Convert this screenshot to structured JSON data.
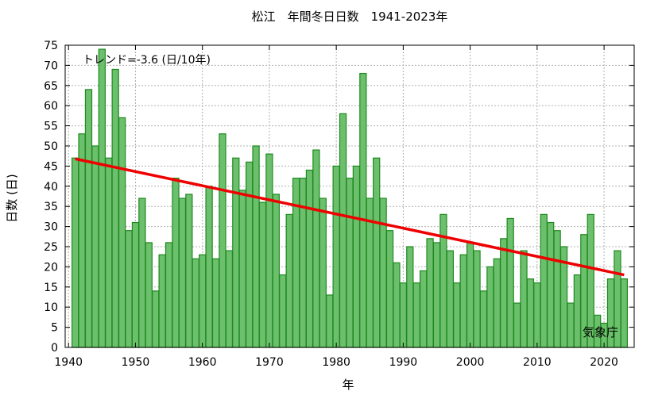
{
  "chart_data": {
    "type": "bar",
    "title": "松江　年間冬日日数　1941-2023年",
    "xlabel": "年",
    "ylabel": "日数 (日)",
    "trend_label": "トレンド=-3.6 (日/10年)",
    "source_label": "気象庁",
    "xlim": [
      1939.5,
      2024.5
    ],
    "ylim": [
      0,
      75
    ],
    "xticks": [
      1940,
      1950,
      1960,
      1970,
      1980,
      1990,
      2000,
      2010,
      2020
    ],
    "yticks": [
      0,
      5,
      10,
      15,
      20,
      25,
      30,
      35,
      40,
      45,
      50,
      55,
      60,
      65,
      70,
      75
    ],
    "grid": true,
    "bar_color": "#6cbf6c",
    "bar_edge_color": "#1f8a1f",
    "trend_color": "#ee0000",
    "x": [
      1941,
      1942,
      1943,
      1944,
      1945,
      1946,
      1947,
      1948,
      1949,
      1950,
      1951,
      1952,
      1953,
      1954,
      1955,
      1956,
      1957,
      1958,
      1959,
      1960,
      1961,
      1962,
      1963,
      1964,
      1965,
      1966,
      1967,
      1968,
      1969,
      1970,
      1971,
      1972,
      1973,
      1974,
      1975,
      1976,
      1977,
      1978,
      1979,
      1980,
      1981,
      1982,
      1983,
      1984,
      1985,
      1986,
      1987,
      1988,
      1989,
      1990,
      1991,
      1992,
      1993,
      1994,
      1995,
      1996,
      1997,
      1998,
      1999,
      2000,
      2001,
      2002,
      2003,
      2004,
      2005,
      2006,
      2007,
      2008,
      2009,
      2010,
      2011,
      2012,
      2013,
      2014,
      2015,
      2016,
      2017,
      2018,
      2019,
      2020,
      2021,
      2022,
      2023
    ],
    "values": [
      47,
      53,
      64,
      50,
      74,
      47,
      69,
      57,
      29,
      31,
      37,
      26,
      14,
      23,
      26,
      42,
      37,
      38,
      22,
      23,
      40,
      22,
      53,
      24,
      47,
      39,
      46,
      50,
      36,
      48,
      38,
      18,
      33,
      42,
      42,
      44,
      49,
      37,
      13,
      45,
      58,
      42,
      45,
      68,
      37,
      47,
      37,
      29,
      21,
      16,
      25,
      16,
      19,
      27,
      26,
      33,
      24,
      16,
      23,
      26,
      24,
      14,
      20,
      22,
      27,
      32,
      11,
      24,
      17,
      16,
      33,
      31,
      29,
      25,
      11,
      18,
      28,
      33,
      8,
      6,
      17,
      24,
      17
    ],
    "trend": {
      "x": [
        1941,
        2023
      ],
      "y": [
        46.8,
        18.0
      ]
    }
  }
}
